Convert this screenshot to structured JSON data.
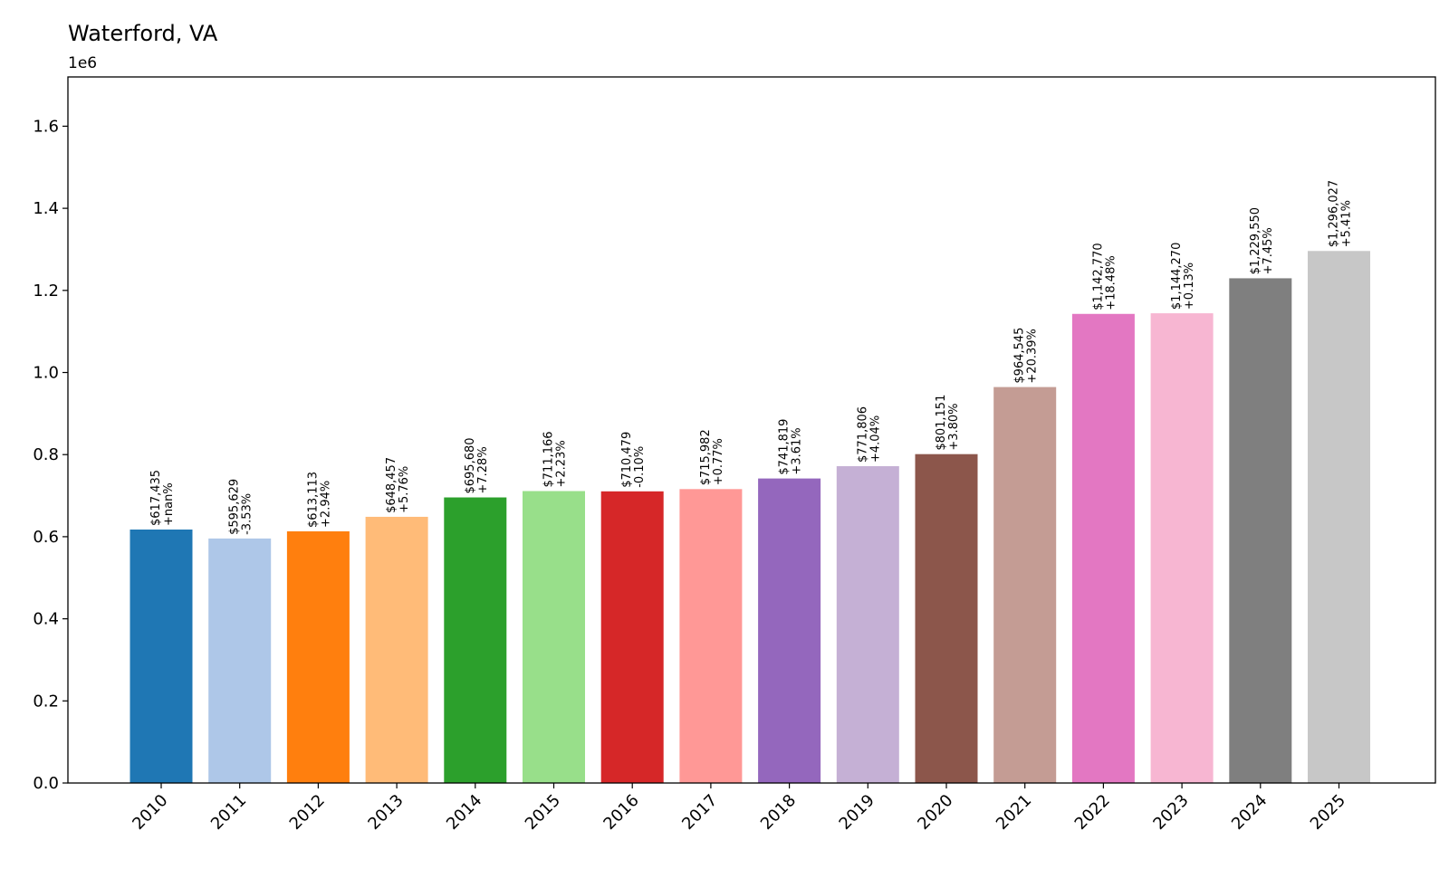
{
  "chart_data": {
    "type": "bar",
    "title": "Waterford, VA",
    "xlabel": "",
    "ylabel": "",
    "y_offset_label": "1e6",
    "ylim": [
      0,
      1.72
    ],
    "yticks": [
      0.0,
      0.2,
      0.4,
      0.6,
      0.8,
      1.0,
      1.2,
      1.4,
      1.6
    ],
    "ytick_labels": [
      "0.0",
      "0.2",
      "0.4",
      "0.6",
      "0.8",
      "1.0",
      "1.2",
      "1.4",
      "1.6"
    ],
    "grid": false,
    "categories": [
      "2010",
      "2011",
      "2012",
      "2013",
      "2014",
      "2015",
      "2016",
      "2017",
      "2018",
      "2019",
      "2020",
      "2021",
      "2022",
      "2023",
      "2024",
      "2025"
    ],
    "values": [
      617435,
      595629,
      613113,
      648457,
      695680,
      711166,
      710479,
      715982,
      741819,
      771806,
      801151,
      964545,
      1142770,
      1144270,
      1229550,
      1296027
    ],
    "value_labels": [
      "$617,435",
      "$595,629",
      "$613,113",
      "$648,457",
      "$695,680",
      "$711,166",
      "$710,479",
      "$715,982",
      "$741,819",
      "$771,806",
      "$801,151",
      "$964,545",
      "$1,142,770",
      "$1,144,270",
      "$1,229,550",
      "$1,296,027"
    ],
    "change_labels": [
      "+nan%",
      "-3.53%",
      "+2.94%",
      "+5.76%",
      "+7.28%",
      "+2.23%",
      "-0.10%",
      "+0.77%",
      "+3.61%",
      "+4.04%",
      "+3.80%",
      "+20.39%",
      "+18.48%",
      "+0.13%",
      "+7.45%",
      "+5.41%"
    ],
    "colors": [
      "#1f77b4",
      "#aec7e8",
      "#ff7f0e",
      "#ffbb78",
      "#2ca02c",
      "#98df8a",
      "#d62728",
      "#ff9896",
      "#9467bd",
      "#c5b0d5",
      "#8c564b",
      "#c49c94",
      "#e377c2",
      "#f7b6d2",
      "#7f7f7f",
      "#c7c7c7"
    ]
  }
}
